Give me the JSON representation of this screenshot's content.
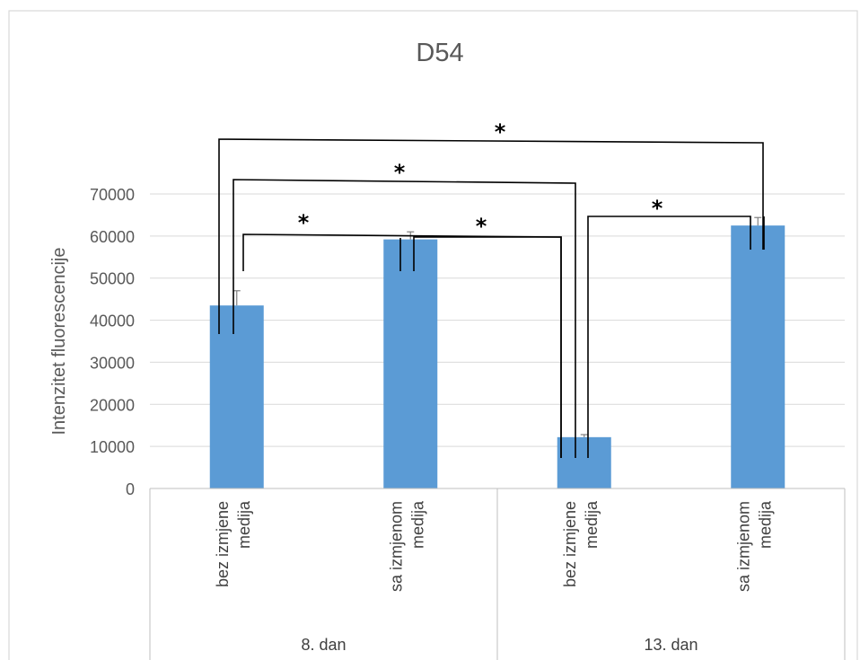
{
  "chart_data": {
    "type": "bar",
    "title": "D54",
    "ylabel": "Intenzitet fluorescencije",
    "xlabel": "",
    "ylim": [
      0,
      70000
    ],
    "yticks": [
      0,
      10000,
      20000,
      30000,
      40000,
      50000,
      60000,
      70000
    ],
    "grid": true,
    "bar_color": "#5b9bd5",
    "categories": [
      {
        "lines": [
          "bez izmjene",
          "medija"
        ],
        "group": "8. dan"
      },
      {
        "lines": [
          "sa izmjenom",
          "medija"
        ],
        "group": "8. dan"
      },
      {
        "lines": [
          "bez izmjene",
          "medija"
        ],
        "group": "13. dan"
      },
      {
        "lines": [
          "sa izmjenom",
          "medija"
        ],
        "group": "13. dan"
      }
    ],
    "groups": [
      "8. dan",
      "13. dan"
    ],
    "values": [
      43500,
      59200,
      12200,
      62500
    ],
    "error_plus": [
      3500,
      1800,
      600,
      1900
    ],
    "significance": [
      {
        "from": 0,
        "to": 1,
        "label": "*"
      },
      {
        "from": 1,
        "to": 2,
        "label": "*"
      },
      {
        "from": 0,
        "to": 2,
        "label": "*"
      },
      {
        "from": 2,
        "to": 3,
        "label": "*"
      },
      {
        "from": 0,
        "to": 3,
        "label": "*"
      }
    ]
  }
}
